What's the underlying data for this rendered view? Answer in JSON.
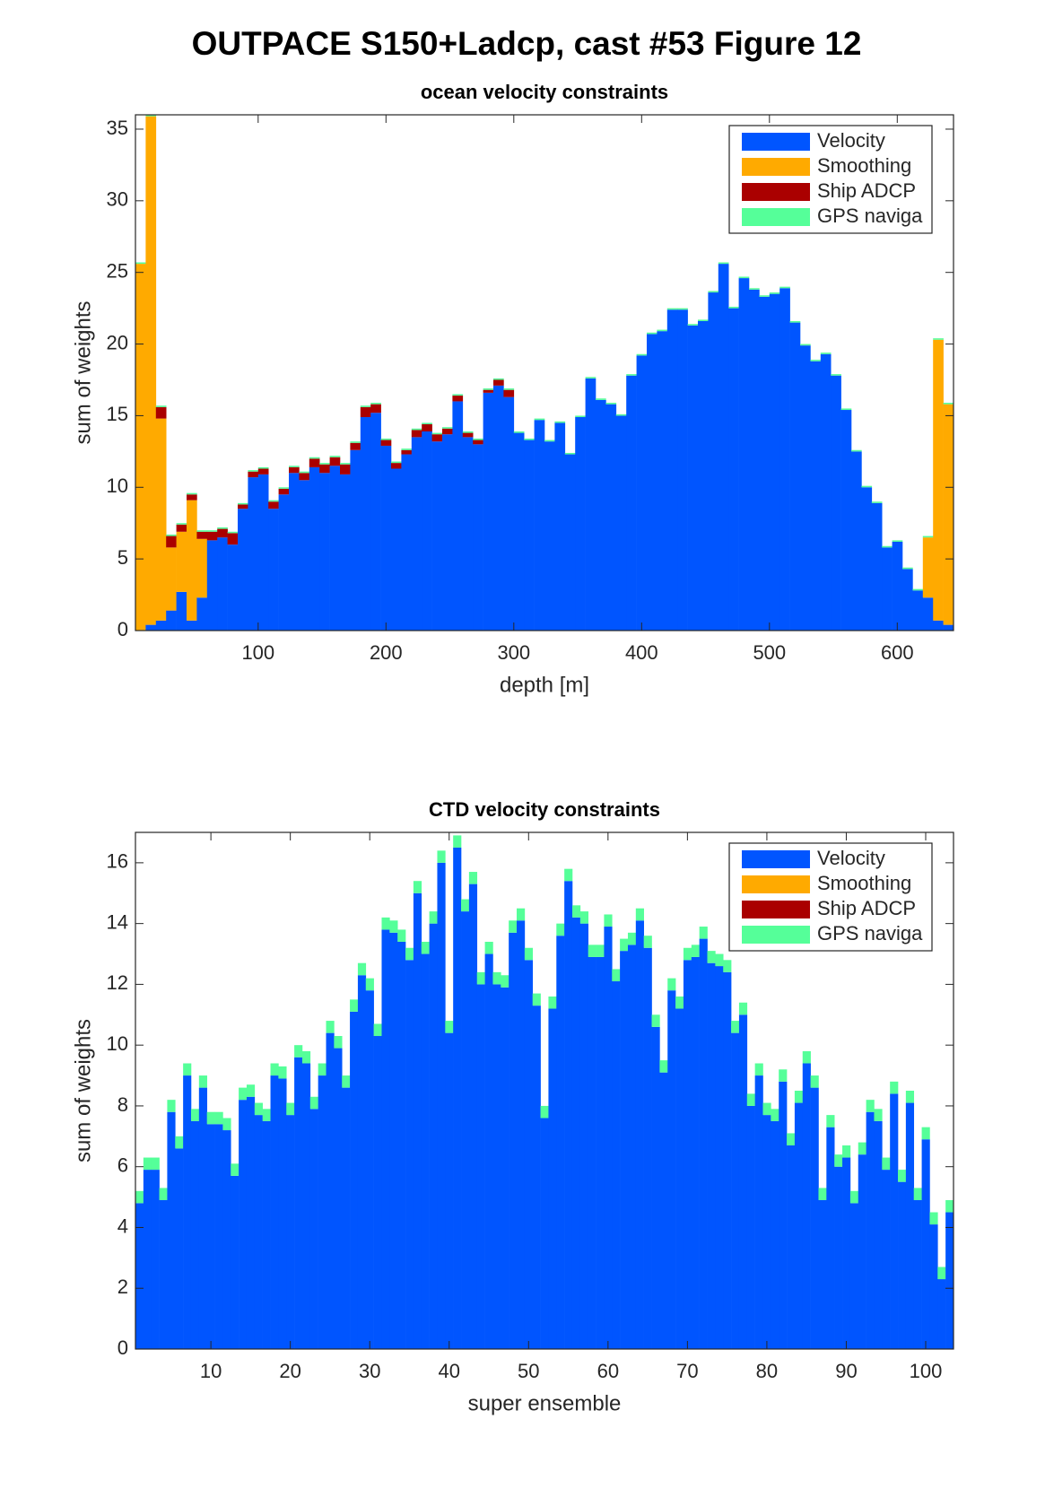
{
  "suptitle": "OUTPACE S150+Ladcp, cast #53  Figure 12",
  "chart_data": [
    {
      "type": "stacked_bar",
      "title": "ocean velocity constraints",
      "xlabel": "depth [m]",
      "ylabel": "sum of weights",
      "x": [
        8,
        16,
        24,
        32,
        40,
        48,
        56,
        64,
        72,
        80,
        88,
        96,
        104,
        112,
        120,
        128,
        136,
        144,
        152,
        160,
        168,
        176,
        184,
        192,
        200,
        208,
        216,
        224,
        232,
        240,
        248,
        256,
        264,
        272,
        280,
        288,
        296,
        304,
        312,
        320,
        328,
        336,
        344,
        352,
        360,
        368,
        376,
        384,
        392,
        400,
        408,
        416,
        424,
        432,
        440,
        448,
        456,
        464,
        472,
        480,
        488,
        496,
        504,
        512,
        520,
        528,
        536,
        544,
        552,
        560,
        568,
        576,
        584,
        592,
        600,
        608,
        616,
        624,
        632,
        640
      ],
      "xlim": [
        4,
        644
      ],
      "xticks": [
        100,
        200,
        300,
        400,
        500,
        600
      ],
      "ylim": [
        0,
        36
      ],
      "yticks": [
        0,
        5,
        10,
        15,
        20,
        25,
        30,
        35
      ],
      "legend": "northeast",
      "series": [
        {
          "name": "Velocity",
          "color": "#0055ff",
          "values": [
            0,
            0.4,
            0.7,
            1.4,
            2.7,
            0.7,
            2.3,
            6.3,
            6.5,
            6.0,
            8.5,
            10.7,
            10.9,
            8.5,
            9.5,
            11.0,
            10.5,
            11.4,
            11.0,
            11.5,
            10.9,
            12.6,
            14.9,
            15.2,
            12.9,
            11.3,
            12.3,
            13.5,
            13.9,
            13.2,
            13.7,
            16.0,
            13.5,
            13.0,
            16.6,
            17.1,
            16.3,
            13.8,
            13.3,
            14.7,
            13.2,
            14.5,
            12.3,
            14.9,
            17.6,
            16.1,
            15.8,
            15.0,
            17.8,
            19.2,
            20.7,
            20.9,
            22.4,
            22.4,
            21.3,
            21.6,
            23.6,
            25.6,
            22.5,
            24.6,
            23.8,
            23.3,
            23.5,
            23.9,
            21.5,
            19.9,
            18.8,
            19.3,
            17.8,
            15.4,
            12.5,
            10.0,
            8.9,
            5.8,
            6.2,
            4.3,
            2.8,
            2.3,
            0.7,
            0.4
          ]
        },
        {
          "name": "Smoothing",
          "color": "#ffaa00",
          "values": [
            25.6,
            35.5,
            14.1,
            4.4,
            4.2,
            8.4,
            4.1,
            0,
            0,
            0,
            0,
            0,
            0,
            0,
            0,
            0,
            0,
            0,
            0,
            0,
            0,
            0,
            0,
            0,
            0,
            0,
            0,
            0,
            0,
            0,
            0,
            0,
            0,
            0,
            0,
            0,
            0,
            0,
            0,
            0,
            0,
            0,
            0,
            0,
            0,
            0,
            0,
            0,
            0,
            0,
            0,
            0,
            0,
            0,
            0,
            0,
            0,
            0,
            0,
            0,
            0,
            0,
            0,
            0,
            0,
            0,
            0,
            0,
            0,
            0,
            0,
            0,
            0,
            0,
            0,
            0,
            0,
            4.2,
            19.6,
            15.4
          ]
        },
        {
          "name": "Ship ADCP",
          "color": "#aa0000",
          "values": [
            0,
            0,
            0.8,
            0.8,
            0.5,
            0.4,
            0.5,
            0.6,
            0.6,
            0.8,
            0.3,
            0.4,
            0.4,
            0.5,
            0.4,
            0.4,
            0.5,
            0.6,
            0.6,
            0.6,
            0.7,
            0.5,
            0.7,
            0.6,
            0.4,
            0.4,
            0.3,
            0.5,
            0.5,
            0.5,
            0.4,
            0.4,
            0.3,
            0.3,
            0.2,
            0.4,
            0.5,
            0,
            0,
            0,
            0,
            0,
            0,
            0,
            0,
            0,
            0,
            0,
            0,
            0,
            0,
            0,
            0,
            0,
            0,
            0,
            0,
            0,
            0,
            0,
            0,
            0,
            0,
            0,
            0,
            0,
            0,
            0,
            0,
            0,
            0,
            0,
            0,
            0,
            0,
            0,
            0,
            0,
            0,
            0
          ]
        },
        {
          "name": "GPS naviga",
          "color": "#55ff99",
          "values": [
            0.1,
            0.1,
            0.1,
            0.1,
            0.1,
            0.1,
            0.1,
            0.1,
            0.1,
            0.1,
            0.1,
            0.1,
            0.1,
            0.1,
            0.1,
            0.1,
            0.1,
            0.1,
            0.1,
            0.1,
            0.1,
            0.1,
            0.1,
            0.1,
            0.1,
            0.1,
            0.1,
            0.1,
            0.1,
            0.1,
            0.1,
            0.1,
            0.1,
            0.1,
            0.1,
            0.1,
            0.1,
            0.1,
            0.1,
            0.1,
            0.1,
            0.1,
            0.1,
            0.1,
            0.1,
            0.1,
            0.1,
            0.1,
            0.1,
            0.1,
            0.1,
            0.1,
            0.1,
            0.1,
            0.1,
            0.1,
            0.1,
            0.1,
            0.1,
            0.1,
            0.1,
            0.1,
            0.1,
            0.1,
            0.1,
            0.1,
            0.1,
            0.1,
            0.1,
            0.1,
            0.1,
            0.1,
            0.1,
            0.1,
            0.1,
            0.1,
            0.1,
            0.1,
            0.1,
            0.1
          ]
        }
      ]
    },
    {
      "type": "stacked_bar",
      "title": "CTD velocity constraints",
      "xlabel": "super ensemble",
      "ylabel": "sum of weights",
      "x": [
        1,
        2,
        3,
        4,
        5,
        6,
        7,
        8,
        9,
        10,
        11,
        12,
        13,
        14,
        15,
        16,
        17,
        18,
        19,
        20,
        21,
        22,
        23,
        24,
        25,
        26,
        27,
        28,
        29,
        30,
        31,
        32,
        33,
        34,
        35,
        36,
        37,
        38,
        39,
        40,
        41,
        42,
        43,
        44,
        45,
        46,
        47,
        48,
        49,
        50,
        51,
        52,
        53,
        54,
        55,
        56,
        57,
        58,
        59,
        60,
        61,
        62,
        63,
        64,
        65,
        66,
        67,
        68,
        69,
        70,
        71,
        72,
        73,
        74,
        75,
        76,
        77,
        78,
        79,
        80,
        81,
        82,
        83,
        84,
        85,
        86,
        87,
        88,
        89,
        90,
        91,
        92,
        93,
        94,
        95,
        96,
        97,
        98,
        99,
        100,
        101,
        102,
        103
      ],
      "xlim": [
        0.5,
        103.5
      ],
      "xticks": [
        10,
        20,
        30,
        40,
        50,
        60,
        70,
        80,
        90,
        100
      ],
      "ylim": [
        0,
        17
      ],
      "yticks": [
        0,
        2,
        4,
        6,
        8,
        10,
        12,
        14,
        16
      ],
      "legend": "northeast",
      "series": [
        {
          "name": "Velocity",
          "color": "#0055ff",
          "values": [
            4.8,
            5.9,
            5.9,
            4.9,
            7.8,
            6.6,
            9.0,
            7.5,
            8.6,
            7.4,
            7.4,
            7.2,
            5.7,
            8.2,
            8.3,
            7.7,
            7.5,
            9.0,
            8.9,
            7.7,
            9.6,
            9.4,
            7.9,
            9.0,
            10.4,
            9.9,
            8.6,
            11.1,
            12.3,
            11.8,
            10.3,
            13.8,
            13.7,
            13.4,
            12.8,
            15.0,
            13.0,
            14.0,
            16.0,
            10.4,
            16.5,
            14.4,
            15.3,
            12.0,
            13.0,
            12.0,
            11.9,
            13.7,
            14.1,
            12.8,
            11.3,
            7.6,
            11.2,
            13.6,
            15.4,
            14.2,
            14.0,
            12.9,
            12.9,
            13.9,
            12.1,
            13.1,
            13.3,
            14.1,
            13.2,
            10.6,
            9.1,
            11.8,
            11.2,
            12.8,
            12.9,
            13.5,
            12.7,
            12.6,
            12.4,
            10.4,
            11.0,
            8.0,
            9.0,
            7.7,
            7.5,
            8.8,
            6.7,
            8.1,
            9.4,
            8.6,
            4.9,
            7.3,
            6.0,
            6.3,
            4.8,
            6.4,
            7.8,
            7.5,
            5.9,
            8.4,
            5.5,
            8.1,
            4.9,
            6.9,
            4.1,
            2.3,
            4.5
          ]
        },
        {
          "name": "Smoothing",
          "color": "#ffaa00",
          "values": [
            0,
            0,
            0,
            0,
            0,
            0,
            0,
            0,
            0,
            0,
            0,
            0,
            0,
            0,
            0,
            0,
            0,
            0,
            0,
            0,
            0,
            0,
            0,
            0,
            0,
            0,
            0,
            0,
            0,
            0,
            0,
            0,
            0,
            0,
            0,
            0,
            0,
            0,
            0,
            0,
            0,
            0,
            0,
            0,
            0,
            0,
            0,
            0,
            0,
            0,
            0,
            0,
            0,
            0,
            0,
            0,
            0,
            0,
            0,
            0,
            0,
            0,
            0,
            0,
            0,
            0,
            0,
            0,
            0,
            0,
            0,
            0,
            0,
            0,
            0,
            0,
            0,
            0,
            0,
            0,
            0,
            0,
            0,
            0,
            0,
            0,
            0,
            0,
            0,
            0,
            0,
            0,
            0,
            0,
            0,
            0,
            0,
            0,
            0,
            0,
            0,
            0,
            0
          ]
        },
        {
          "name": "Ship ADCP",
          "color": "#aa0000",
          "values": [
            0,
            0,
            0,
            0,
            0,
            0,
            0,
            0,
            0,
            0,
            0,
            0,
            0,
            0,
            0,
            0,
            0,
            0,
            0,
            0,
            0,
            0,
            0,
            0,
            0,
            0,
            0,
            0,
            0,
            0,
            0,
            0,
            0,
            0,
            0,
            0,
            0,
            0,
            0,
            0,
            0,
            0,
            0,
            0,
            0,
            0,
            0,
            0,
            0,
            0,
            0,
            0,
            0,
            0,
            0,
            0,
            0,
            0,
            0,
            0,
            0,
            0,
            0,
            0,
            0,
            0,
            0,
            0,
            0,
            0,
            0,
            0,
            0,
            0,
            0,
            0,
            0,
            0,
            0,
            0,
            0,
            0,
            0,
            0,
            0,
            0,
            0,
            0,
            0,
            0,
            0,
            0,
            0,
            0,
            0,
            0,
            0,
            0,
            0,
            0,
            0,
            0,
            0
          ]
        },
        {
          "name": "GPS naviga",
          "color": "#55ff99",
          "values": [
            0.4,
            0.4,
            0.4,
            0.4,
            0.4,
            0.4,
            0.4,
            0.4,
            0.4,
            0.4,
            0.4,
            0.4,
            0.4,
            0.4,
            0.4,
            0.4,
            0.4,
            0.4,
            0.4,
            0.4,
            0.4,
            0.4,
            0.4,
            0.4,
            0.4,
            0.4,
            0.4,
            0.4,
            0.4,
            0.4,
            0.4,
            0.4,
            0.4,
            0.4,
            0.4,
            0.4,
            0.4,
            0.4,
            0.4,
            0.4,
            0.4,
            0.4,
            0.4,
            0.4,
            0.4,
            0.4,
            0.4,
            0.4,
            0.4,
            0.4,
            0.4,
            0.4,
            0.4,
            0.4,
            0.4,
            0.4,
            0.4,
            0.4,
            0.4,
            0.4,
            0.4,
            0.4,
            0.4,
            0.4,
            0.4,
            0.4,
            0.4,
            0.4,
            0.4,
            0.4,
            0.4,
            0.4,
            0.4,
            0.4,
            0.4,
            0.4,
            0.4,
            0.4,
            0.4,
            0.4,
            0.4,
            0.4,
            0.4,
            0.4,
            0.4,
            0.4,
            0.4,
            0.4,
            0.4,
            0.4,
            0.4,
            0.4,
            0.4,
            0.4,
            0.4,
            0.4,
            0.4,
            0.4,
            0.4,
            0.4,
            0.4,
            0.4,
            0.4
          ]
        }
      ]
    }
  ]
}
